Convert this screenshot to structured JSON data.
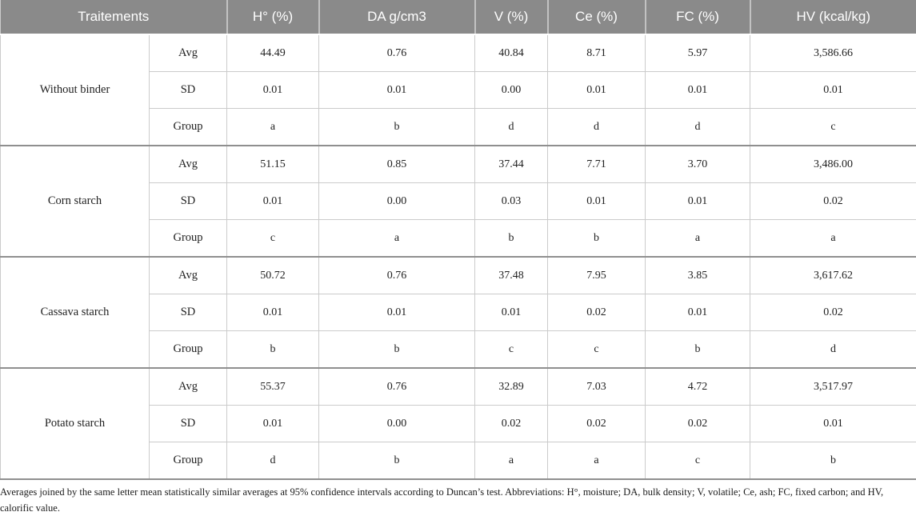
{
  "colors": {
    "header_bg": "#8a8a8a",
    "header_text": "#ffffff",
    "grid_line": "#cbcbcb",
    "group_line": "#8f8f8f",
    "body_text": "#1f1f1f"
  },
  "table": {
    "header": [
      "Traitements",
      "H° (%)",
      "DA g/cm3",
      "V (%)",
      "Ce (%)",
      "FC (%)",
      "HV (kcal/kg)"
    ],
    "groups": [
      {
        "treatment": "Without binder",
        "stats": [
          {
            "label": "Avg",
            "values": [
              "44.49",
              "0.76",
              "40.84",
              "8.71",
              "5.97",
              "3,586.66"
            ]
          },
          {
            "label": "SD",
            "values": [
              "0.01",
              "0.01",
              "0.00",
              "0.01",
              "0.01",
              "0.01"
            ]
          },
          {
            "label": "Group",
            "values": [
              "a",
              "b",
              "d",
              "d",
              "d",
              "c"
            ]
          }
        ]
      },
      {
        "treatment": "Corn starch",
        "stats": [
          {
            "label": "Avg",
            "values": [
              "51.15",
              "0.85",
              "37.44",
              "7.71",
              "3.70",
              "3,486.00"
            ]
          },
          {
            "label": "SD",
            "values": [
              "0.01",
              "0.00",
              "0.03",
              "0.01",
              "0.01",
              "0.02"
            ]
          },
          {
            "label": "Group",
            "values": [
              "c",
              "a",
              "b",
              "b",
              "a",
              "a"
            ]
          }
        ]
      },
      {
        "treatment": "Cassava starch",
        "stats": [
          {
            "label": "Avg",
            "values": [
              "50.72",
              "0.76",
              "37.48",
              "7.95",
              "3.85",
              "3,617.62"
            ]
          },
          {
            "label": "SD",
            "values": [
              "0.01",
              "0.01",
              "0.01",
              "0.02",
              "0.01",
              "0.02"
            ]
          },
          {
            "label": "Group",
            "values": [
              "b",
              "b",
              "c",
              "c",
              "b",
              "d"
            ]
          }
        ]
      },
      {
        "treatment": "Potato starch",
        "stats": [
          {
            "label": "Avg",
            "values": [
              "55.37",
              "0.76",
              "32.89",
              "7.03",
              "4.72",
              "3,517.97"
            ]
          },
          {
            "label": "SD",
            "values": [
              "0.01",
              "0.00",
              "0.02",
              "0.02",
              "0.02",
              "0.01"
            ]
          },
          {
            "label": "Group",
            "values": [
              "d",
              "b",
              "a",
              "a",
              "c",
              "b"
            ]
          }
        ]
      }
    ]
  },
  "footnote": "Averages joined by the same letter mean statistically similar averages at 95% confidence intervals according to Duncan’s test. Abbreviations: H°, moisture; DA, bulk density; V, volatile; Ce, ash; FC, fixed carbon; and HV, calorific value."
}
